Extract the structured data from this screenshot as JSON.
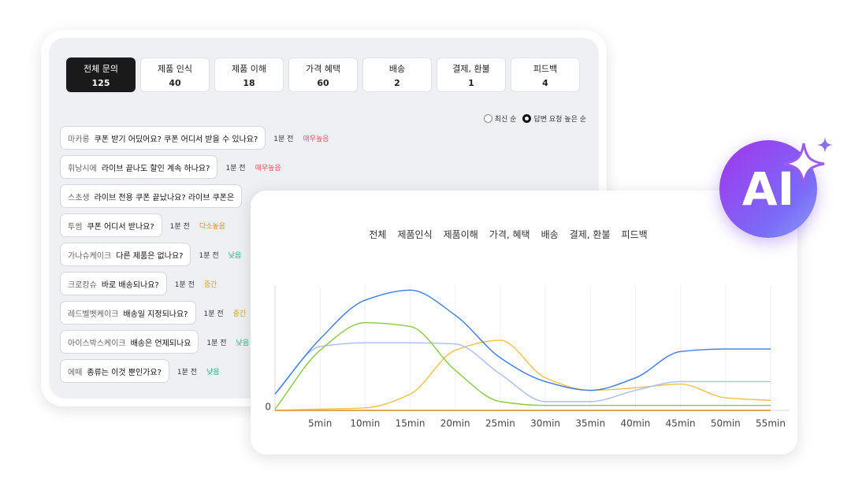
{
  "tabs": [
    {
      "label": "전체 문의",
      "count": 125,
      "active": true
    },
    {
      "label": "제품 인식",
      "count": 40,
      "active": false
    },
    {
      "label": "제품 이해",
      "count": 18,
      "active": false
    },
    {
      "label": "가격 혜택",
      "count": 60,
      "active": false
    },
    {
      "label": "배송",
      "count": 2,
      "active": false
    },
    {
      "label": "결제, 환불",
      "count": 1,
      "active": false
    },
    {
      "label": "피드백",
      "count": 4,
      "active": false
    }
  ],
  "sort_options": [
    {
      "label": "최신 순",
      "selected": false
    },
    {
      "label": "답변 요청 높은 순",
      "selected": true
    }
  ],
  "questions": [
    {
      "user": "마카롱",
      "text": "쿠폰 받기 어딨어요? 쿠폰 어디서 받을 수 있나요?",
      "time": "1분 전",
      "priority": "매우높음",
      "priority_color": "#f0555a"
    },
    {
      "user": "휘낭시에",
      "text": "라이브 끝나도 할인 계속 하나요?",
      "time": "1분 전",
      "priority": "매우높음",
      "priority_color": "#f0555a"
    },
    {
      "user": "스초생",
      "text": "라이브 전용 쿠폰 끝났나요? 라이브 쿠폰은"
    },
    {
      "user": "투썸",
      "text": "쿠폰 어디서 받나요?",
      "time": "1분 전",
      "priority": "다소높음",
      "priority_color": "#f08a24"
    },
    {
      "user": "가나슈케이크",
      "text": "다른 제품은 없나요?",
      "time": "1분 전",
      "priority": "낮음",
      "priority_color": "#2bb37a"
    },
    {
      "user": "크로캉슈",
      "text": "바로 배송되나요?",
      "time": "1분 전",
      "priority": "중간",
      "priority_color": "#e8a317"
    },
    {
      "user": "레드벨벳케이크",
      "text": "배송일 지정되나요?",
      "time": "1분 전",
      "priority": "중간",
      "priority_color": "#e8a317"
    },
    {
      "user": "아이스박스케이크",
      "text": "배송은 언제되나요",
      "time": "1분 전",
      "priority": "낮음",
      "priority_color": "#2bb37a"
    },
    {
      "user": "에떼",
      "text": "종류는 이것 뿐인가요?",
      "time": "1분 전",
      "priority": "낮음",
      "priority_color": "#2bb37a"
    }
  ],
  "badge": "AI",
  "chart_data": {
    "type": "line",
    "x": [
      0,
      5,
      10,
      15,
      20,
      25,
      30,
      35,
      40,
      45,
      50,
      55
    ],
    "xlim": [
      0,
      55
    ],
    "xticks": [
      {
        "value": 5,
        "label": "5min"
      },
      {
        "value": 10,
        "label": "10min"
      },
      {
        "value": 15,
        "label": "15min"
      },
      {
        "value": 20,
        "label": "20min"
      },
      {
        "value": 25,
        "label": "25min"
      },
      {
        "value": 30,
        "label": "30min"
      },
      {
        "value": 35,
        "label": "35min"
      },
      {
        "value": 40,
        "label": "40min"
      },
      {
        "value": 45,
        "label": "45min"
      },
      {
        "value": 50,
        "label": "50min"
      },
      {
        "value": 55,
        "label": "55min"
      }
    ],
    "ylim": [
      0,
      100
    ],
    "yticks": [
      0
    ],
    "grid": true,
    "series": [
      {
        "name": "전체",
        "color": "#3b7be8",
        "values": [
          13,
          57,
          88,
          96,
          76,
          42,
          23,
          16,
          26,
          47,
          49,
          49
        ]
      },
      {
        "name": "제품인식",
        "color": "#f29a38",
        "values": [
          0,
          0,
          0,
          0,
          0,
          0,
          0,
          0,
          0,
          0,
          0,
          0
        ]
      },
      {
        "name": "제품이해",
        "color": "#86cc3c",
        "values": [
          1,
          48,
          70,
          67,
          32,
          7,
          4,
          4,
          4,
          4,
          4,
          4
        ]
      },
      {
        "name": "가격, 혜택",
        "color": "#a9bdf2",
        "values": [
          13,
          51,
          54,
          54,
          53,
          29,
          7,
          7,
          16,
          23,
          23,
          23
        ]
      },
      {
        "name": "배송",
        "color": "#7cc8e6",
        "values": [
          0,
          0,
          0,
          0,
          0,
          0,
          0,
          0,
          0,
          0,
          0,
          0
        ]
      },
      {
        "name": "결제, 환불",
        "color": "#f5bf45",
        "values": [
          0,
          1,
          2,
          13,
          48,
          56,
          26,
          16,
          18,
          21,
          10,
          8
        ]
      },
      {
        "name": "피드백",
        "color": "#a6dc6a",
        "values": [
          0,
          0,
          0,
          0,
          0,
          0,
          0,
          0,
          0,
          0,
          0,
          0
        ]
      }
    ]
  }
}
